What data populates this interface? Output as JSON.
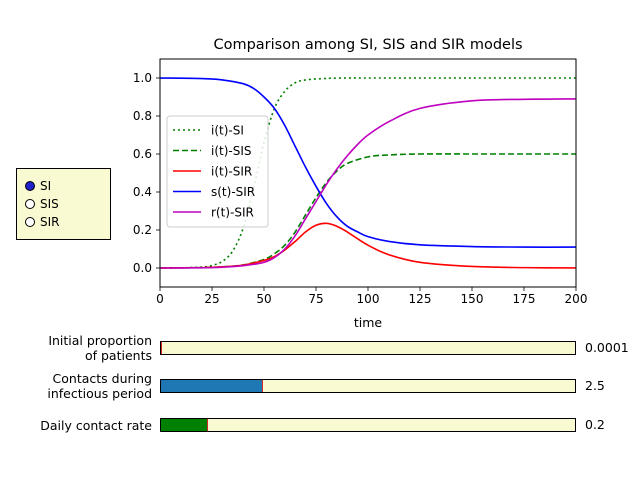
{
  "chart_data": {
    "type": "line",
    "title": "Comparison among SI, SIS and SIR models",
    "xlabel": "time",
    "ylabel": "",
    "xlim": [
      0,
      200
    ],
    "ylim": [
      -0.1,
      1.1
    ],
    "xticks": [
      "0",
      "25",
      "50",
      "75",
      "100",
      "125",
      "150",
      "175",
      "200"
    ],
    "yticks": [
      "0.0",
      "0.2",
      "0.4",
      "0.6",
      "0.8",
      "1.0"
    ],
    "legend_position": "center-left",
    "grid": false,
    "series": [
      {
        "name": "i(t)-SI",
        "color": "#008000",
        "style": "dotted",
        "x": [
          0,
          10,
          20,
          25,
          30,
          35,
          40,
          45,
          50,
          55,
          60,
          65,
          70,
          80,
          90,
          100,
          125,
          150,
          175,
          200
        ],
        "y": [
          0.0001,
          0.0007,
          0.005,
          0.013,
          0.035,
          0.09,
          0.21,
          0.42,
          0.66,
          0.84,
          0.93,
          0.975,
          0.99,
          0.998,
          1.0,
          1.0,
          1.0,
          1.0,
          1.0,
          1.0
        ]
      },
      {
        "name": "i(t)-SIS",
        "color": "#008000",
        "style": "dashed",
        "x": [
          0,
          20,
          30,
          40,
          50,
          55,
          60,
          65,
          70,
          75,
          80,
          85,
          90,
          100,
          110,
          125,
          150,
          175,
          200
        ],
        "y": [
          0.0001,
          0.002,
          0.006,
          0.016,
          0.045,
          0.075,
          0.12,
          0.19,
          0.28,
          0.37,
          0.45,
          0.51,
          0.55,
          0.585,
          0.595,
          0.6,
          0.6,
          0.6,
          0.6
        ]
      },
      {
        "name": "i(t)-SIR",
        "color": "#ff0000",
        "style": "solid",
        "x": [
          0,
          20,
          30,
          40,
          50,
          55,
          60,
          65,
          70,
          75,
          80,
          85,
          90,
          100,
          110,
          125,
          150,
          175,
          200
        ],
        "y": [
          0.0001,
          0.002,
          0.006,
          0.015,
          0.04,
          0.06,
          0.095,
          0.14,
          0.19,
          0.225,
          0.235,
          0.22,
          0.19,
          0.12,
          0.07,
          0.03,
          0.008,
          0.002,
          0.0005
        ]
      },
      {
        "name": "s(t)-SIR",
        "color": "#0000ff",
        "style": "solid",
        "x": [
          0,
          20,
          30,
          40,
          45,
          50,
          55,
          60,
          65,
          70,
          75,
          80,
          85,
          90,
          95,
          100,
          110,
          125,
          150,
          175,
          200
        ],
        "y": [
          0.9999,
          0.997,
          0.99,
          0.97,
          0.945,
          0.9,
          0.84,
          0.75,
          0.64,
          0.53,
          0.43,
          0.34,
          0.27,
          0.22,
          0.19,
          0.165,
          0.14,
          0.122,
          0.113,
          0.11,
          0.11
        ]
      },
      {
        "name": "r(t)-SIR",
        "color": "#bf00bf",
        "style": "solid",
        "x": [
          0,
          20,
          30,
          40,
          50,
          55,
          60,
          65,
          70,
          75,
          80,
          85,
          90,
          95,
          100,
          110,
          125,
          150,
          175,
          200
        ],
        "y": [
          0.0,
          0.001,
          0.004,
          0.012,
          0.03,
          0.055,
          0.1,
          0.17,
          0.26,
          0.35,
          0.44,
          0.52,
          0.59,
          0.65,
          0.7,
          0.77,
          0.84,
          0.88,
          0.888,
          0.89
        ]
      }
    ]
  },
  "radio": {
    "options": [
      "SI",
      "SIS",
      "SIR"
    ],
    "selected": "SI",
    "selected_color": "#1f1fcc",
    "panel_color": "#fafad2"
  },
  "sliders": [
    {
      "label": "Initial proportion\nof patients",
      "value_text": "0.0001",
      "fraction": 0.0,
      "fill_color": "#1f77b4"
    },
    {
      "label": "Contacts during\ninfectious period",
      "value_text": "2.5",
      "fraction": 0.245,
      "fill_color": "#1f77b4"
    },
    {
      "label": "Daily contact rate",
      "value_text": "0.2",
      "fraction": 0.11,
      "fill_color": "#008000"
    }
  ]
}
